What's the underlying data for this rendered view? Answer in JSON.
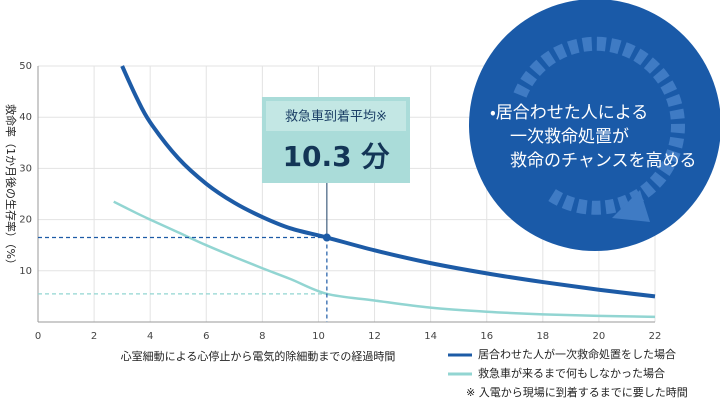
{
  "chart_data": {
    "type": "line",
    "y_label": "救命率（1か月後の生存率）（%）",
    "x_label": "心室細動による心停止から電気的除細動までの経過時間",
    "xlim": [
      0,
      22
    ],
    "xticks": [
      0,
      2,
      4,
      6,
      8,
      10,
      12,
      14,
      16,
      18,
      20,
      22
    ],
    "ylim": [
      0,
      50
    ],
    "yticks": [
      10,
      20,
      30,
      40,
      50
    ],
    "grid": true,
    "series": [
      {
        "name": "居合わせた人が一次救命処置をした場合",
        "color": "#1d5ba6",
        "x": [
          3,
          3.5,
          4,
          5,
          6,
          7,
          8,
          9,
          10.3,
          12,
          14,
          16,
          18,
          20,
          22
        ],
        "values": [
          50,
          44,
          39,
          32,
          27,
          23.3,
          20.5,
          18.3,
          16.5,
          14,
          11.5,
          9.5,
          7.8,
          6.3,
          5
        ]
      },
      {
        "name": "救急車が来るまで何もしなかった場合",
        "color": "#92d5d2",
        "x": [
          2.7,
          3.5,
          4,
          5,
          6,
          7,
          8,
          9,
          10.3,
          12,
          14,
          16,
          18,
          20,
          22
        ],
        "values": [
          23.5,
          21.3,
          20,
          17.5,
          15,
          12.7,
          10.5,
          8.4,
          5.5,
          4.2,
          2.8,
          2,
          1.5,
          1.2,
          1
        ]
      }
    ],
    "reference": {
      "x": 10.3,
      "y": 16.5,
      "y_light": 5.5
    },
    "callout": {
      "title": "救急車到着平均※",
      "value_text": "10.3 分"
    },
    "circle_text": [
      "・居合わせた人による",
      "一次救命処置が",
      "救命のチャンスを高める"
    ],
    "footnote": "※ 入電から現場に到着するまでに要した時間"
  }
}
